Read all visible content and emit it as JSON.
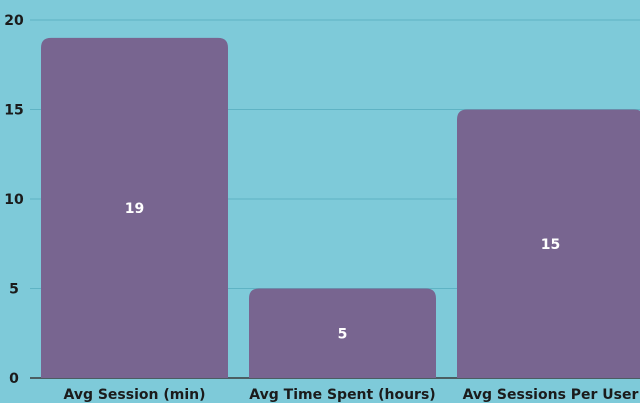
{
  "chart_data": {
    "type": "bar",
    "title": "",
    "xlabel": "",
    "ylabel": "",
    "categories": [
      "Avg Session (min)",
      "Avg Time Spent (hours)",
      "Avg Sessions Per User"
    ],
    "values": [
      19,
      5,
      15
    ],
    "value_labels": [
      "19",
      "5",
      "15"
    ],
    "ylim": [
      0,
      20
    ],
    "yticks": [
      0,
      5,
      10,
      15,
      20
    ],
    "grid": true,
    "legend": "none"
  },
  "colors": {
    "background": "#7ecad9",
    "bar": "#786590",
    "grid": "#5fb3c4",
    "axis": "#3a3a3a"
  }
}
